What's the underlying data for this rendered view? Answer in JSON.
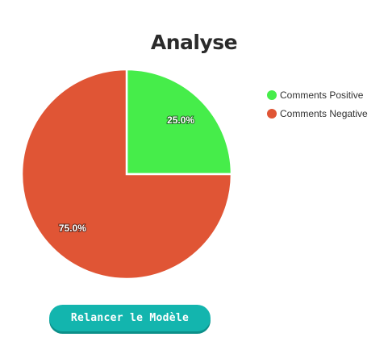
{
  "page": {
    "title": "Analyse"
  },
  "chart_data": {
    "type": "pie",
    "title": "Analyse",
    "categories": [
      "Comments Positive",
      "Comments Negative"
    ],
    "values": [
      25.0,
      75.0
    ],
    "labels": [
      "25.0%",
      "75.0%"
    ],
    "colors": [
      "#46ed4a",
      "#e05535"
    ],
    "legend_position": "top-right",
    "start_angle": "12 o'clock",
    "direction": "clockwise"
  },
  "legend": {
    "items": [
      {
        "label": "Comments Positive",
        "color": "#46ed4a"
      },
      {
        "label": "Comments Negative",
        "color": "#e05535"
      }
    ]
  },
  "button": {
    "label": "Relancer le Modèle",
    "color": "#13b5ae"
  }
}
